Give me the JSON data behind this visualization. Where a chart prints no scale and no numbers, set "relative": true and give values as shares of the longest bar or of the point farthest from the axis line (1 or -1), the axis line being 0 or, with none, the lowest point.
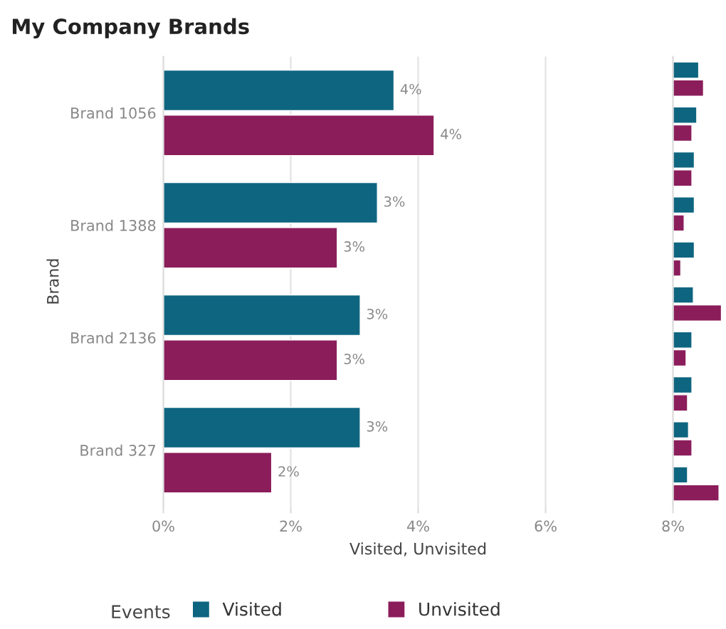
{
  "chart_data": [
    {
      "type": "bar",
      "orientation": "horizontal",
      "title": "My Company Brands",
      "xlabel": "Visited, Unvisited",
      "ylabel": "Brand",
      "legend_title": "Events",
      "legend": "bottom",
      "categories": [
        "Brand 1056",
        "Brand 1388",
        "Brand 2136",
        "Brand 327"
      ],
      "series": [
        {
          "name": "Visited",
          "color": "#0e6580",
          "values": [
            3.62,
            3.36,
            3.09,
            3.09
          ],
          "value_labels": [
            "4%",
            "3%",
            "3%",
            "3%"
          ]
        },
        {
          "name": "Unvisited",
          "color": "#8b1d5b",
          "values": [
            4.25,
            2.73,
            2.73,
            1.7
          ],
          "value_labels": [
            "4%",
            "3%",
            "3%",
            "2%"
          ]
        }
      ],
      "xlim": [
        0,
        8
      ],
      "xticks": [
        {
          "value": 0,
          "label": "0%"
        },
        {
          "value": 2,
          "label": "2%"
        },
        {
          "value": 4,
          "label": "4%"
        },
        {
          "value": 6,
          "label": "6%"
        },
        {
          "value": 8,
          "label": "8%"
        }
      ],
      "grid": "x"
    },
    {
      "type": "bar",
      "orientation": "horizontal",
      "relative": true,
      "categories": [
        null,
        null,
        null,
        null,
        null,
        null,
        null,
        null,
        null,
        null
      ],
      "series": [
        {
          "color": "#0e6580",
          "values": [
            0.53,
            0.49,
            0.44,
            0.44,
            0.44,
            0.42,
            0.39,
            0.39,
            0.32,
            0.3
          ]
        },
        {
          "color": "#8b1d5b",
          "values": [
            0.63,
            0.39,
            0.39,
            0.23,
            0.16,
            1.0,
            0.27,
            0.3,
            0.39,
            0.95
          ]
        }
      ]
    }
  ]
}
